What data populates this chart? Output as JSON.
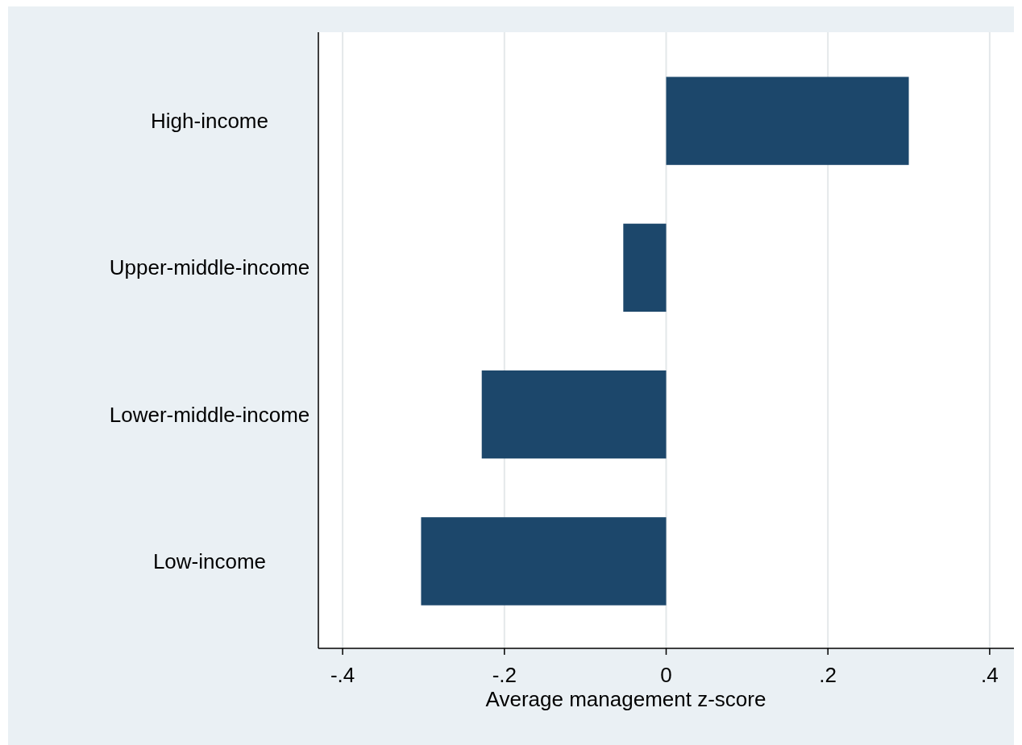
{
  "chart_data": {
    "type": "bar",
    "orientation": "horizontal",
    "xlabel": "Average management z-score",
    "categories": [
      "High-income",
      "Upper-middle-income",
      "Lower-middle-income",
      "Low-income"
    ],
    "values": [
      0.3,
      -0.053,
      -0.228,
      -0.303
    ],
    "color": "#1c476b",
    "xlim": [
      -0.43,
      0.43
    ],
    "xticks": [
      {
        "value": -0.4,
        "label": "-.4"
      },
      {
        "value": -0.2,
        "label": "-.2"
      },
      {
        "value": 0,
        "label": "0"
      },
      {
        "value": 0.2,
        "label": ".2"
      },
      {
        "value": 0.4,
        "label": ".4"
      }
    ],
    "grid": "x"
  }
}
